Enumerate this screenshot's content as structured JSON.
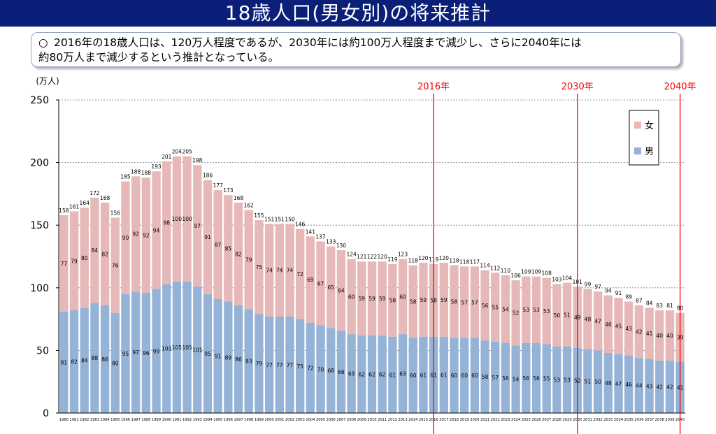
{
  "header": {
    "title": "18歳人口(男女別)の将来推計"
  },
  "note": {
    "bullet": "○",
    "line1": "2016年の18歳人口は、120万人程度であるが、2030年には約100万人程度まで減少し、さらに2040年には",
    "line2": "約80万人まで減少するという推計となっている。"
  },
  "colors": {
    "female": "#e6b8b7",
    "male": "#95b3d7",
    "marker": "#ff0000"
  },
  "chart_data": {
    "type": "bar",
    "stacked": true,
    "unit_label": "(万人)",
    "ylim": [
      0,
      250
    ],
    "yticks": [
      0,
      50,
      100,
      150,
      200,
      250
    ],
    "categories": [
      "1980",
      "1981",
      "1982",
      "1983",
      "1984",
      "1985",
      "1986",
      "1987",
      "1988",
      "1989",
      "1990",
      "1991",
      "1992",
      "1993",
      "1994",
      "1995",
      "1996",
      "1997",
      "1998",
      "1999",
      "2000",
      "2001",
      "2002",
      "2003",
      "2004",
      "2005",
      "2006",
      "2007",
      "2008",
      "2009",
      "2010",
      "2011",
      "2012",
      "2013",
      "2014",
      "2015",
      "2016",
      "2017",
      "2018",
      "2019",
      "2020",
      "2021",
      "2022",
      "2023",
      "2024",
      "2025",
      "2026",
      "2027",
      "2028",
      "2029",
      "2030",
      "2031",
      "2032",
      "2033",
      "2034",
      "2035",
      "2036",
      "2037",
      "2038",
      "2039",
      "2040"
    ],
    "series": [
      {
        "name": "男",
        "values": [
          81,
          82,
          84,
          88,
          86,
          80,
          95,
          97,
          96,
          99,
          103,
          105,
          105,
          101,
          95,
          91,
          89,
          86,
          83,
          79,
          77,
          77,
          77,
          75,
          72,
          70,
          68,
          66,
          63,
          62,
          62,
          62,
          61,
          63,
          60,
          61,
          61,
          61,
          60,
          60,
          60,
          58,
          57,
          56,
          54,
          56,
          56,
          55,
          53,
          53,
          52,
          51,
          50,
          48,
          47,
          46,
          44,
          43,
          42,
          42,
          41
        ]
      },
      {
        "name": "女",
        "values": [
          77,
          79,
          80,
          84,
          82,
          76,
          90,
          92,
          92,
          94,
          98,
          100,
          100,
          97,
          91,
          87,
          85,
          82,
          79,
          75,
          74,
          74,
          74,
          72,
          69,
          67,
          65,
          64,
          60,
          59,
          59,
          59,
          58,
          60,
          58,
          59,
          58,
          59,
          58,
          57,
          57,
          56,
          55,
          54,
          52,
          53,
          53,
          53,
          50,
          51,
          49,
          48,
          47,
          46,
          45,
          43,
          42,
          41,
          40,
          40,
          39
        ]
      }
    ],
    "totals": [
      158,
      161,
      164,
      172,
      168,
      156,
      185,
      188,
      188,
      193,
      201,
      204,
      205,
      198,
      186,
      177,
      173,
      168,
      162,
      155,
      151,
      151,
      150,
      146,
      141,
      137,
      133,
      130,
      124,
      121,
      122,
      120,
      119,
      123,
      118,
      120,
      119,
      120,
      118,
      118,
      117,
      114,
      112,
      110,
      106,
      109,
      109,
      108,
      103,
      104,
      101,
      99,
      97,
      94,
      91,
      89,
      87,
      84,
      83,
      81,
      80
    ],
    "markers": [
      {
        "year": "2016",
        "label": "2016年"
      },
      {
        "year": "2030",
        "label": "2030年"
      },
      {
        "year": "2040",
        "label": "2040年"
      }
    ],
    "legend": [
      {
        "name": "女",
        "color": "#e6b8b7"
      },
      {
        "name": "男",
        "color": "#95b3d7"
      }
    ],
    "legend_position": "top-right",
    "grid": true
  }
}
